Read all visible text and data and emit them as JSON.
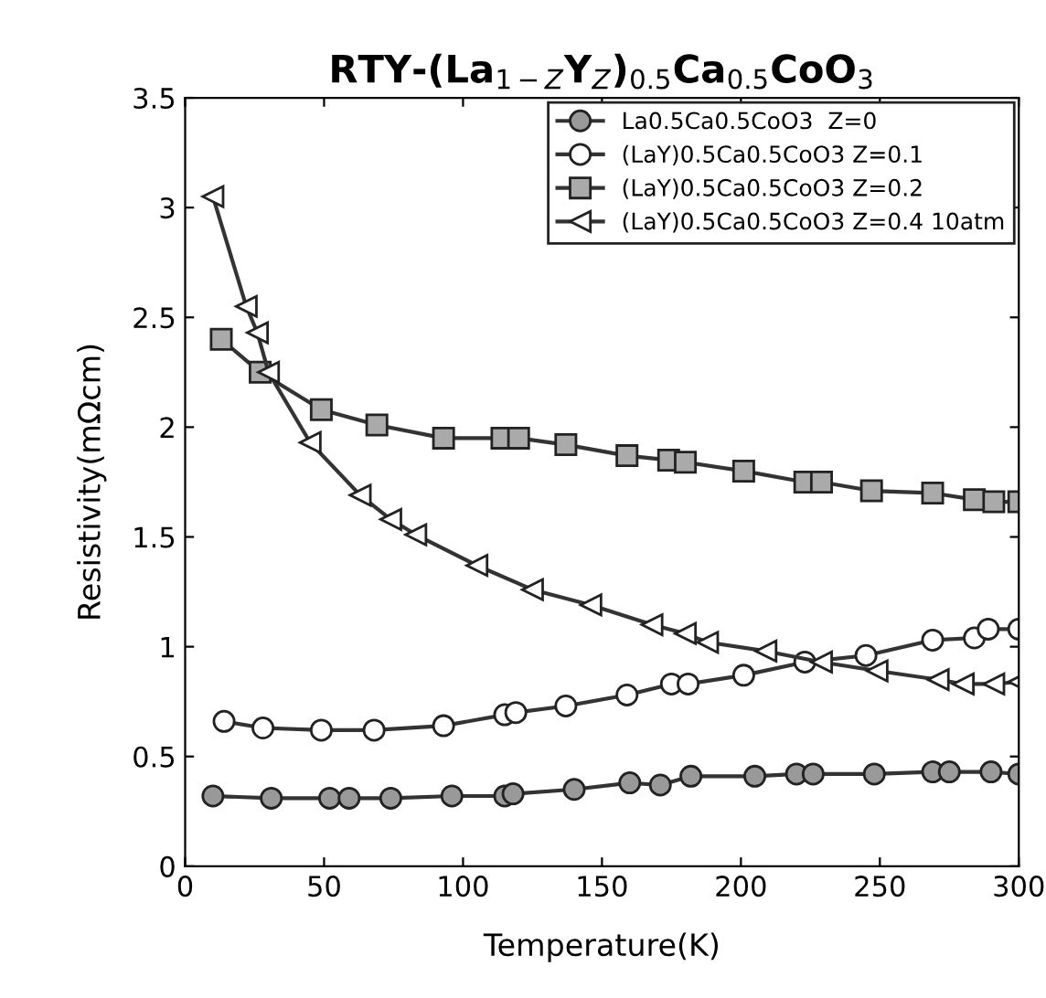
{
  "chart_data": {
    "type": "line",
    "title": "RTY-(La$_{1−Z}$Y$_{Z}$)$_{0.5}$Ca$_{0.5}$CoO$_{3}$",
    "xlabel": "Temperature(K)",
    "ylabel": "Resistivity(mΩcm)",
    "xlim": [
      0,
      300
    ],
    "xticks": [
      0,
      50,
      100,
      150,
      200,
      250,
      300
    ],
    "ylim": [
      0,
      3.5
    ],
    "yticks": [
      0,
      0.5,
      1,
      1.5,
      2,
      2.5,
      3,
      3.5
    ],
    "grid": false,
    "legend": "top right",
    "line_style": "solid",
    "series": [
      {
        "name": "La0.5Ca0.5CoO3  Z=0",
        "color": "#999999",
        "marker": "circle",
        "x": [
          10,
          31,
          52,
          59,
          74,
          96,
          115,
          118,
          140,
          160,
          171,
          182,
          205,
          220,
          226,
          248,
          269,
          275,
          290,
          300
        ],
        "values": [
          0.32,
          0.31,
          0.31,
          0.31,
          0.31,
          0.32,
          0.32,
          0.33,
          0.35,
          0.38,
          0.37,
          0.41,
          0.41,
          0.42,
          0.42,
          0.42,
          0.43,
          0.43,
          0.43,
          0.42
        ]
      },
      {
        "name": "(LaY)0.5Ca0.5CoO3 Z=0.1",
        "color": "#ffffff",
        "marker": "circle",
        "x": [
          14,
          28,
          49,
          68,
          93,
          115,
          119,
          137,
          159,
          175,
          181,
          201,
          223,
          245,
          269,
          284,
          289,
          300
        ],
        "values": [
          0.66,
          0.63,
          0.62,
          0.62,
          0.64,
          0.69,
          0.7,
          0.73,
          0.78,
          0.83,
          0.83,
          0.87,
          0.93,
          0.96,
          1.03,
          1.04,
          1.08,
          1.08
        ]
      },
      {
        "name": "(LaY)0.5Ca0.5CoO3 Z=0.2",
        "color": "#aaaaaa",
        "marker": "square",
        "x": [
          13,
          27,
          49,
          69,
          93,
          114,
          120,
          137,
          159,
          174,
          180,
          201,
          223,
          229,
          247,
          269,
          284,
          291,
          300
        ],
        "values": [
          2.4,
          2.25,
          2.08,
          2.01,
          1.95,
          1.95,
          1.95,
          1.92,
          1.87,
          1.85,
          1.84,
          1.8,
          1.75,
          1.75,
          1.71,
          1.7,
          1.67,
          1.66,
          1.66
        ]
      },
      {
        "name": "(LaY)0.5Ca0.5CoO3 Z=0.4 10atm",
        "color": "#ffffff",
        "marker": "triangle",
        "x": [
          10,
          22,
          26,
          30,
          45,
          63,
          74,
          83,
          105,
          125,
          146,
          168,
          180,
          188,
          209,
          229,
          249,
          271,
          280,
          291,
          300
        ],
        "values": [
          3.05,
          2.55,
          2.43,
          2.25,
          1.93,
          1.69,
          1.58,
          1.51,
          1.37,
          1.26,
          1.19,
          1.1,
          1.06,
          1.02,
          0.98,
          0.93,
          0.89,
          0.85,
          0.83,
          0.83,
          0.84
        ]
      }
    ]
  }
}
